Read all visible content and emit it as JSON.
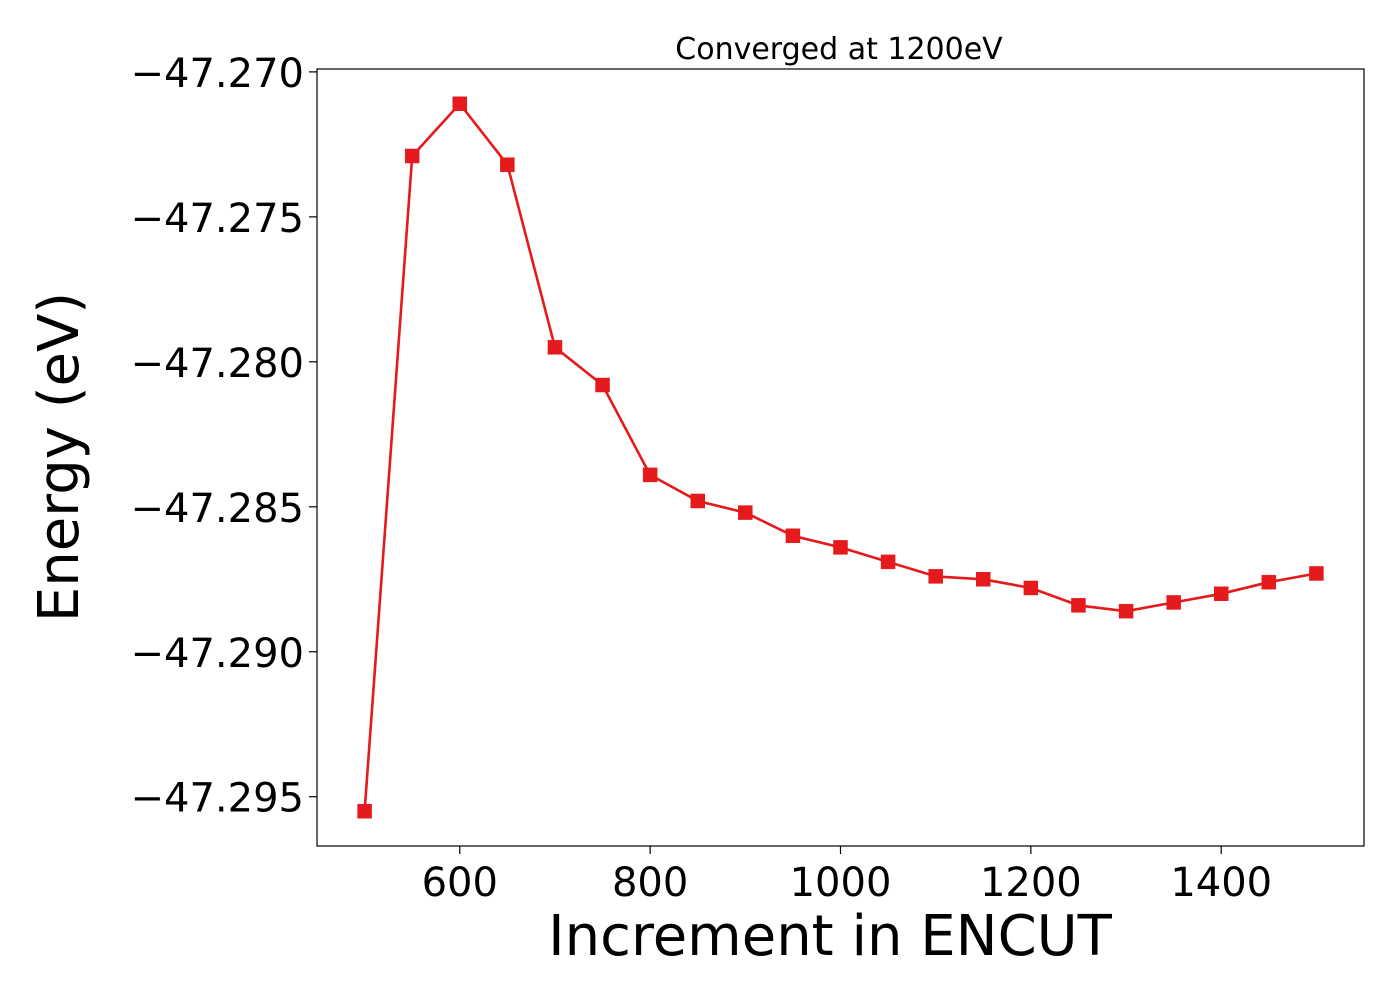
{
  "chart_data": {
    "type": "line",
    "title": "Converged at 1200eV",
    "xlabel": "Increment in ENCUT",
    "ylabel": "Energy (eV)",
    "xlim": [
      450,
      1550
    ],
    "ylim": [
      -47.2967,
      -47.2699
    ],
    "x_ticks": [
      600,
      800,
      1000,
      1200,
      1400
    ],
    "x_tick_labels": [
      "600",
      "800",
      "1000",
      "1200",
      "1400"
    ],
    "y_ticks": [
      -47.27,
      -47.275,
      -47.28,
      -47.285,
      -47.29,
      -47.295
    ],
    "y_tick_labels": [
      "−47.270",
      "−47.275",
      "−47.280",
      "−47.285",
      "−47.290",
      "−47.295"
    ],
    "grid": false,
    "series": [
      {
        "color": "#e41a1c",
        "marker": "square",
        "x": [
          500,
          550,
          600,
          650,
          700,
          750,
          800,
          850,
          900,
          950,
          1000,
          1050,
          1100,
          1150,
          1200,
          1250,
          1300,
          1350,
          1400,
          1450,
          1500
        ],
        "values": [
          -47.2955,
          -47.2729,
          -47.2711,
          -47.2732,
          -47.2795,
          -47.2808,
          -47.2839,
          -47.2848,
          -47.2852,
          -47.286,
          -47.2864,
          -47.2869,
          -47.2874,
          -47.2875,
          -47.2878,
          -47.2884,
          -47.2886,
          -47.2883,
          -47.288,
          -47.2876,
          -47.2873
        ]
      }
    ]
  }
}
